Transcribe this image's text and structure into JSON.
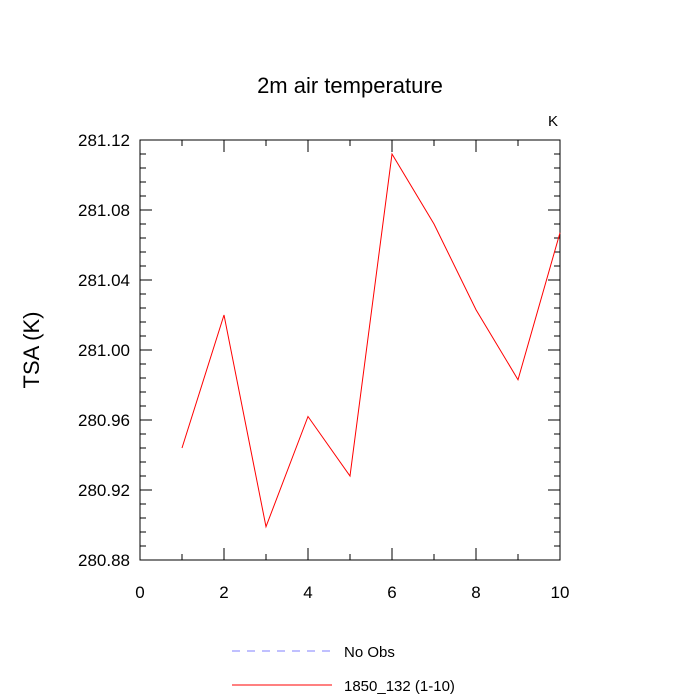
{
  "chart_data": {
    "type": "line",
    "title": "2m air temperature",
    "ylabel": "TSA  (K)",
    "units_label": "K",
    "xlim": [
      0,
      10
    ],
    "ylim": [
      280.88,
      281.12
    ],
    "x_ticks": [
      0,
      2,
      4,
      6,
      8,
      10
    ],
    "y_ticks": [
      "280.88",
      "280.92",
      "280.96",
      "281.00",
      "281.04",
      "281.08",
      "281.12"
    ],
    "x": [
      1,
      2,
      3,
      4,
      5,
      6,
      7,
      8,
      9,
      10
    ],
    "series": [
      {
        "name": "1850_132 (1-10)",
        "color": "#ff0000",
        "style": "solid",
        "values": [
          280.944,
          281.02,
          280.899,
          280.962,
          280.928,
          281.112,
          281.072,
          281.023,
          280.983,
          281.067
        ]
      }
    ],
    "legend": [
      {
        "label": "No Obs",
        "color": "#8080ff",
        "style": "dashed"
      },
      {
        "label": "1850_132 (1-10)",
        "color": "#ff0000",
        "style": "solid"
      }
    ],
    "legend_position": "bottom",
    "grid": false
  }
}
